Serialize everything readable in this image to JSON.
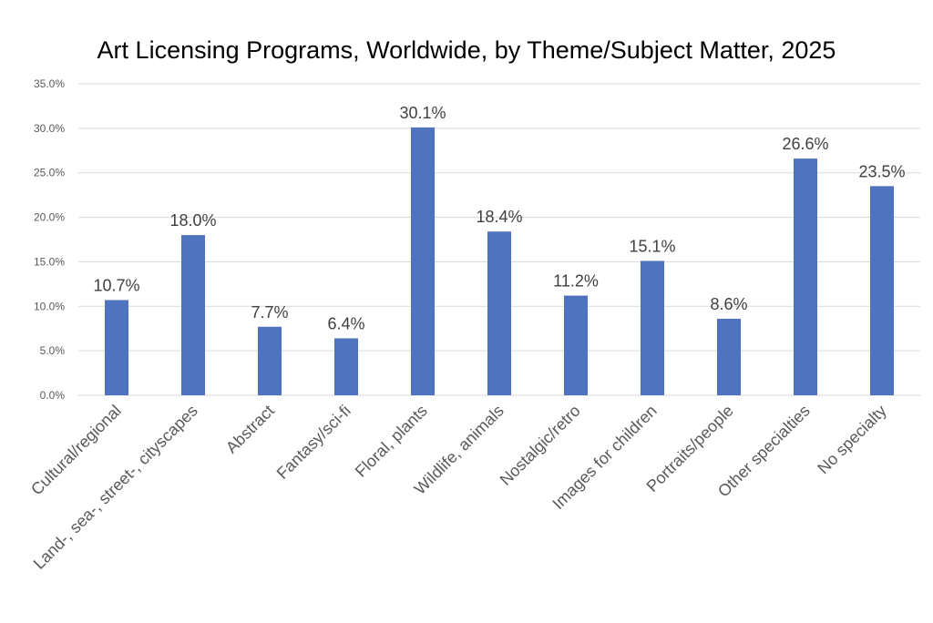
{
  "chart_data": {
    "type": "bar",
    "title": "Art Licensing Programs, Worldwide, by Theme/Subject Matter, 2025",
    "xlabel": "",
    "ylabel": "",
    "ylim": [
      0,
      35
    ],
    "yticks": [
      0,
      5,
      10,
      15,
      20,
      25,
      30,
      35
    ],
    "ytick_labels": [
      "0.0%",
      "5.0%",
      "10.0%",
      "15.0%",
      "20.0%",
      "25.0%",
      "30.0%",
      "35.0%"
    ],
    "grid": true,
    "legend": "none",
    "categories": [
      "Cultural/regional",
      "Land-, sea-, street-, cityscapes",
      "Abstract",
      "Fantasy/sci-fi",
      "Floral, plants",
      "Wildlife, animals",
      "Nostalgic/retro",
      "Images for children",
      "Portraits/people",
      "Other specialties",
      "No specialty"
    ],
    "values": [
      10.7,
      18.0,
      7.7,
      6.4,
      30.1,
      18.4,
      11.2,
      15.1,
      8.6,
      26.6,
      23.5
    ],
    "data_labels": [
      "10.7%",
      "18.0%",
      "7.7%",
      "6.4%",
      "30.1%",
      "18.4%",
      "11.2%",
      "15.1%",
      "8.6%",
      "26.6%",
      "23.5%"
    ],
    "bar_color": "#4f73be",
    "grid_color": "#d9d9d9"
  }
}
